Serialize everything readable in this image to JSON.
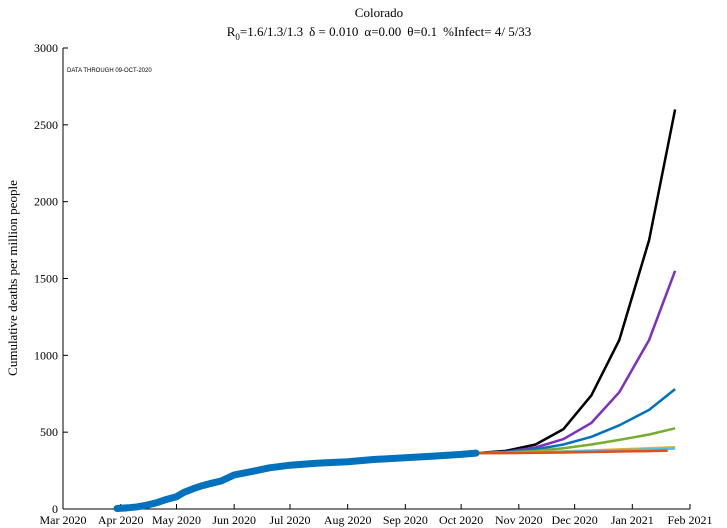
{
  "chart_data": {
    "type": "line",
    "title": "Colorado",
    "subtitle": {
      "r0_label": "R",
      "r0_subscript": "0",
      "r0_values": "=1.6/1.3/1.3",
      "delta": "δ = 0.010",
      "alpha": "α=0.00",
      "theta": "θ=0.1",
      "infect": "%Infect= 4/ 5/33"
    },
    "note": "DATA THROUGH 09-OCT-2020",
    "xlabel": "",
    "ylabel": "Cumulative deaths per million people",
    "ylim": [
      0,
      3000
    ],
    "yticks": [
      0,
      500,
      1000,
      1500,
      2000,
      2500,
      3000
    ],
    "xlim": [
      "2020-03-01",
      "2021-02-01"
    ],
    "xticks": [
      {
        "date": "2020-03-01",
        "label": "Mar 2020"
      },
      {
        "date": "2020-04-01",
        "label": "Apr 2020"
      },
      {
        "date": "2020-05-01",
        "label": "May 2020"
      },
      {
        "date": "2020-06-01",
        "label": "Jun 2020"
      },
      {
        "date": "2020-07-01",
        "label": "Jul 2020"
      },
      {
        "date": "2020-08-01",
        "label": "Aug 2020"
      },
      {
        "date": "2020-09-01",
        "label": "Sep 2020"
      },
      {
        "date": "2020-10-01",
        "label": "Oct 2020"
      },
      {
        "date": "2020-11-01",
        "label": "Nov 2020"
      },
      {
        "date": "2020-12-01",
        "label": "Dec 2020"
      },
      {
        "date": "2021-01-01",
        "label": "Jan 2021"
      },
      {
        "date": "2021-02-01",
        "label": "Feb 2021"
      }
    ],
    "grid": false,
    "observed": {
      "color": "#0072bd",
      "x": [
        "2020-03-30",
        "2020-04-05",
        "2020-04-10",
        "2020-04-15",
        "2020-04-20",
        "2020-04-25",
        "2020-05-01",
        "2020-05-05",
        "2020-05-10",
        "2020-05-15",
        "2020-05-20",
        "2020-05-25",
        "2020-06-01",
        "2020-06-10",
        "2020-06-20",
        "2020-07-01",
        "2020-07-15",
        "2020-08-01",
        "2020-08-15",
        "2020-09-01",
        "2020-09-15",
        "2020-10-01",
        "2020-10-09"
      ],
      "values": [
        3,
        8,
        14,
        25,
        40,
        60,
        80,
        108,
        132,
        152,
        168,
        182,
        222,
        243,
        268,
        285,
        298,
        308,
        322,
        333,
        343,
        355,
        364
      ]
    },
    "series": [
      {
        "color": "#000000",
        "x": [
          "2020-10-09",
          "2020-10-25",
          "2020-11-10",
          "2020-11-25",
          "2020-12-10",
          "2020-12-25",
          "2021-01-10",
          "2021-01-24"
        ],
        "values": [
          364,
          378,
          420,
          520,
          740,
          1100,
          1750,
          2600
        ]
      },
      {
        "color": "#7e2fbe",
        "x": [
          "2020-10-09",
          "2020-10-25",
          "2020-11-10",
          "2020-11-25",
          "2020-12-10",
          "2020-12-25",
          "2021-01-10",
          "2021-01-24"
        ],
        "values": [
          364,
          372,
          400,
          455,
          560,
          760,
          1100,
          1550
        ]
      },
      {
        "color": "#0072bd",
        "x": [
          "2020-10-09",
          "2020-10-25",
          "2020-11-10",
          "2020-11-25",
          "2020-12-10",
          "2020-12-25",
          "2021-01-10",
          "2021-01-24"
        ],
        "values": [
          364,
          370,
          388,
          420,
          470,
          545,
          645,
          780
        ]
      },
      {
        "color": "#77ac30",
        "x": [
          "2020-10-09",
          "2020-10-25",
          "2020-11-10",
          "2020-11-25",
          "2020-12-10",
          "2020-12-25",
          "2021-01-10",
          "2021-01-24"
        ],
        "values": [
          364,
          368,
          378,
          395,
          420,
          450,
          485,
          525
        ]
      },
      {
        "color": "#edb120",
        "x": [
          "2020-10-09",
          "2020-10-25",
          "2020-11-10",
          "2020-11-25",
          "2020-12-10",
          "2020-12-25",
          "2021-01-10",
          "2021-01-24"
        ],
        "values": [
          364,
          366,
          370,
          375,
          381,
          388,
          395,
          402
        ]
      },
      {
        "color": "#4dbeee",
        "x": [
          "2020-10-09",
          "2020-10-25",
          "2020-11-10",
          "2020-11-25",
          "2020-12-10",
          "2020-12-25",
          "2021-01-10",
          "2021-01-24"
        ],
        "values": [
          364,
          365,
          368,
          372,
          377,
          382,
          388,
          394
        ]
      },
      {
        "color": "#d95319",
        "x": [
          "2020-10-09",
          "2020-10-25",
          "2020-11-10",
          "2020-11-25",
          "2020-12-10",
          "2020-12-25",
          "2021-01-10",
          "2021-01-20"
        ],
        "values": [
          364,
          364,
          366,
          368,
          371,
          374,
          377,
          380
        ]
      }
    ]
  }
}
